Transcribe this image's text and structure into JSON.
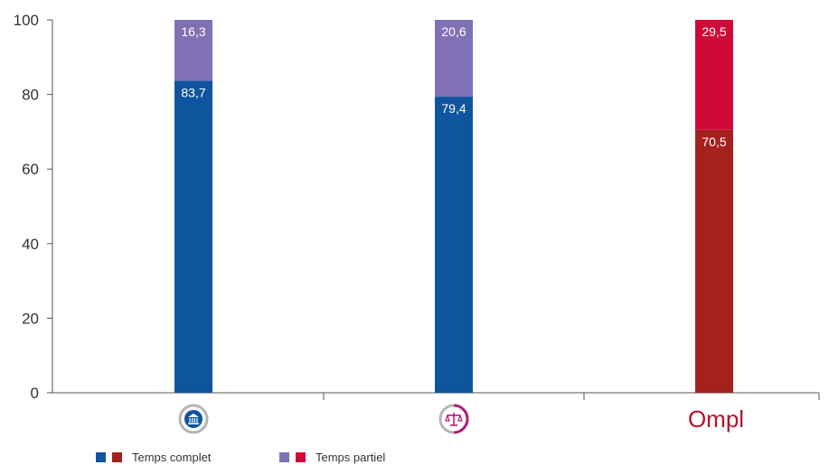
{
  "chart_data": {
    "type": "bar",
    "stacked": true,
    "title": "",
    "xlabel": "",
    "ylabel": "",
    "ylim": [
      0,
      100
    ],
    "yticks": [
      0,
      20,
      40,
      60,
      80,
      100
    ],
    "categories": [
      "notaires-icon",
      "justice-icon",
      "ompl-logo"
    ],
    "category_logo_text": [
      "",
      "",
      "Ompl"
    ],
    "series": [
      {
        "name": "Temps complet",
        "values": [
          83.7,
          79.4,
          70.5
        ],
        "labels": [
          "83,7",
          "79,4",
          "70,5"
        ],
        "colors": [
          "#0f559e",
          "#0f559e",
          "#a5211e"
        ]
      },
      {
        "name": "Temps partiel",
        "values": [
          16.3,
          20.6,
          29.5
        ],
        "labels": [
          "16,3",
          "20,6",
          "29,5"
        ],
        "colors": [
          "#8071b4",
          "#8071b4",
          "#cf0a37"
        ]
      }
    ],
    "legend": [
      {
        "label": "Temps complet",
        "swatches": [
          "#0f559e",
          "#a5211e"
        ]
      },
      {
        "label": "Temps partiel",
        "swatches": [
          "#8071b4",
          "#cf0a37"
        ]
      }
    ],
    "legend_position": "bottom-left",
    "grid": false,
    "colors": {
      "blue": "#0f559e",
      "purple": "#8071b4",
      "dark_red": "#a5211e",
      "red": "#cf0a37",
      "magenta": "#b01f7a",
      "axis": "#555555"
    }
  }
}
